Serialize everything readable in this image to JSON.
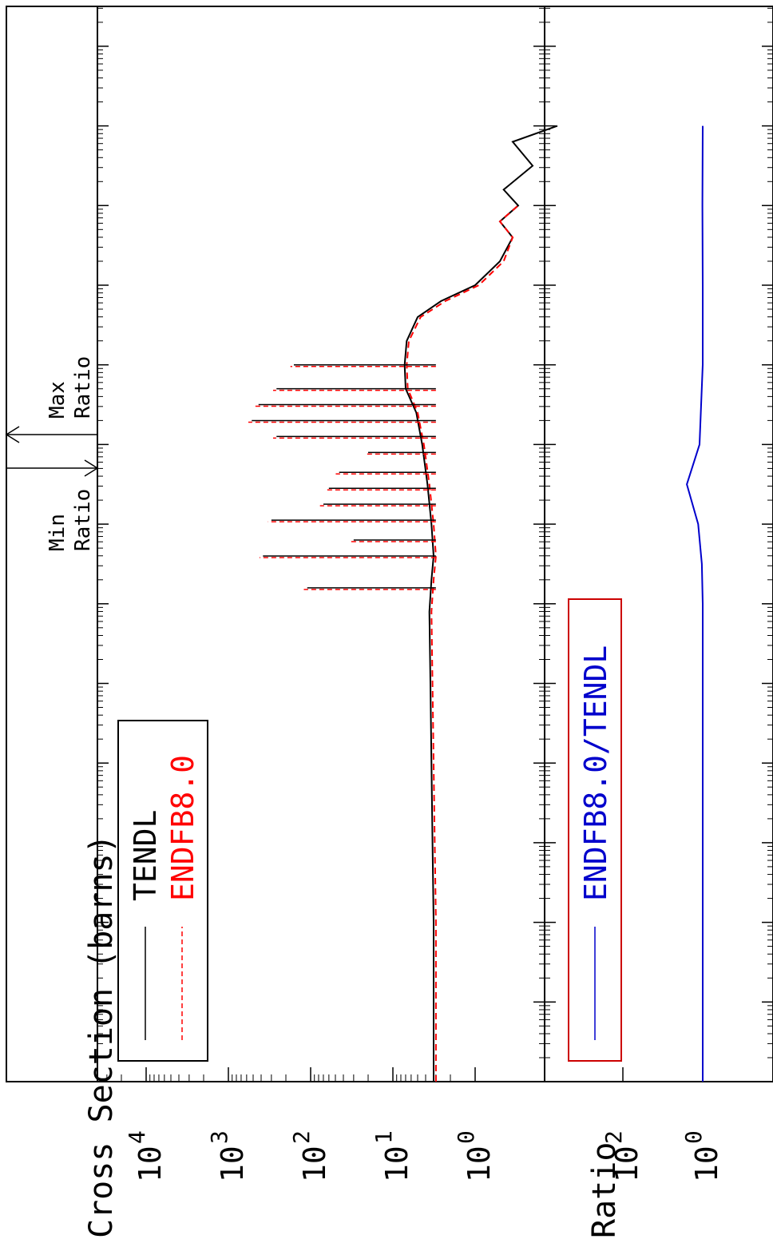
{
  "chart_data": [
    {
      "type": "line",
      "ylabel": "Cross Section (barns)",
      "yscale": "log",
      "ylim": [
        0.04,
        40000
      ],
      "y_ticks": [
        {
          "base": "10",
          "exp": "4",
          "value": 10000
        },
        {
          "base": "10",
          "exp": "3",
          "value": 1000
        },
        {
          "base": "10",
          "exp": "2",
          "value": 100
        },
        {
          "base": "10",
          "exp": "1",
          "value": 10
        },
        {
          "base": "10",
          "exp": "0",
          "value": 1
        }
      ],
      "annotations": [
        {
          "line1": "Min",
          "line2": "Ratio"
        },
        {
          "line1": "Max",
          "line2": "Ratio"
        }
      ],
      "legend": {
        "placement": "bottom-left"
      },
      "series": [
        {
          "name": "TENDL",
          "color": "#000000",
          "dash": "solid",
          "x_index": [
            0,
            1,
            2,
            3,
            4,
            5,
            5.9,
            6.3,
            6.6,
            7,
            7.5,
            8,
            8.4,
            8.7,
            9,
            9.3,
            9.6,
            9.8,
            10,
            10.3,
            10.6,
            10.8,
            11,
            11.2,
            11.5,
            11.8,
            12
          ],
          "values": [
            3.2,
            3.2,
            3.2,
            3.3,
            3.4,
            3.5,
            3.6,
            3.4,
            3.2,
            3.4,
            3.8,
            4.4,
            5.2,
            7.0,
            7.2,
            6.8,
            5.0,
            2.6,
            1.0,
            0.5,
            0.35,
            0.5,
            0.3,
            0.45,
            0.2,
            0.35,
            0.1
          ]
        },
        {
          "name": "ENDFB8.0",
          "color": "#ff0000",
          "dash": "dashed",
          "x_index": [
            0,
            1,
            2,
            3,
            4,
            5,
            5.9,
            6.3,
            6.6,
            7,
            7.5,
            8,
            8.4,
            8.7,
            9,
            9.3,
            9.6,
            9.8,
            10,
            10.3,
            10.6,
            10.8,
            11
          ],
          "values": [
            3.0,
            3.0,
            3.0,
            3.1,
            3.2,
            3.3,
            3.4,
            3.2,
            3.0,
            3.2,
            3.6,
            4.2,
            5.0,
            6.6,
            6.8,
            6.4,
            4.6,
            2.3,
            0.9,
            0.45,
            0.35,
            0.5,
            0.3
          ]
        }
      ]
    },
    {
      "type": "line",
      "ylabel": "Ratio",
      "yscale": "log",
      "y_ticks": [
        {
          "base": "10",
          "exp": "2",
          "value": 100
        },
        {
          "base": "10",
          "exp": "0",
          "value": 1
        }
      ],
      "legend": {
        "placement": "bottom-left"
      },
      "series": [
        {
          "name": "ENDFB8.0/TENDL",
          "color": "#0000cc",
          "dash": "solid",
          "x_index": [
            0,
            2,
            4,
            6,
            6.5,
            7,
            7.5,
            8,
            9,
            10,
            11,
            12
          ],
          "values": [
            1,
            1,
            1,
            1,
            1.05,
            1.3,
            2.5,
            1.2,
            1,
            1,
            1.02,
            1
          ]
        }
      ]
    }
  ]
}
